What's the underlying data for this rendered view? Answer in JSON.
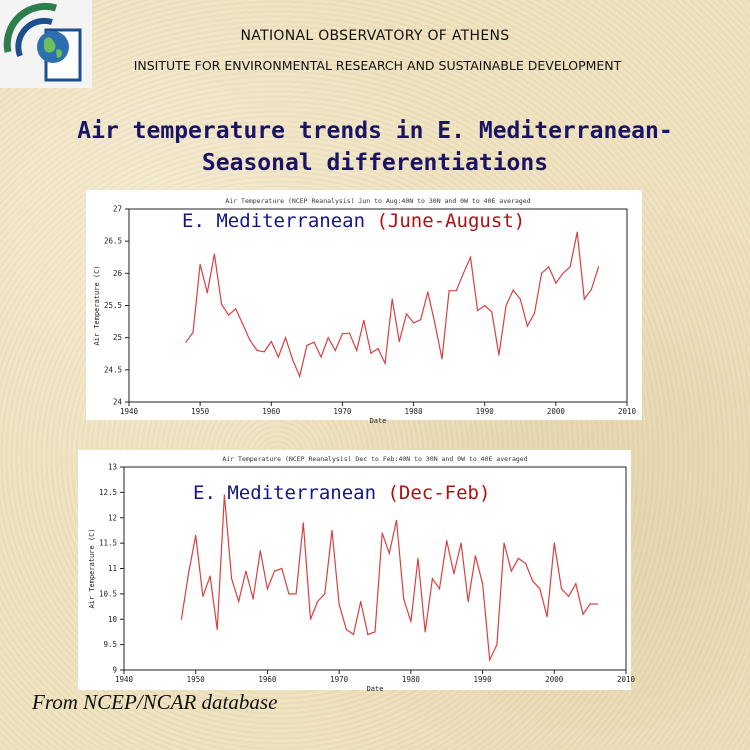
{
  "header": {
    "org": "NATIONAL OBSERVATORY OF ATHENS",
    "institute": "INSITUTE FOR ENVIRONMENTAL RESEARCH AND SUSTAINABLE DEVELOPMENT"
  },
  "title": {
    "line1": "Air temperature trends in E. Mediterranean-",
    "line2": "Seasonal differentiations"
  },
  "footer": {
    "source": "From NCEP/NCAR database"
  },
  "colors": {
    "line": "#d94040",
    "title": "#1a1466",
    "region": "#15158a",
    "season": "#b01010"
  },
  "chart_data": [
    {
      "type": "line",
      "title": "Air Temperature (NCEP Reanalysis) Jun to Aug:40N to 30N and 0W to 40E averaged",
      "overlay_region": "E. Mediterranean",
      "overlay_season": "(June-August)",
      "xlabel": "Date",
      "ylabel": "Air Temperature (C)",
      "xlim": [
        1940,
        2010
      ],
      "ylim": [
        24,
        27
      ],
      "xticks": [
        1940,
        1950,
        1960,
        1970,
        1980,
        1990,
        2000,
        2010
      ],
      "yticks": [
        24,
        24.5,
        25,
        25.5,
        26,
        26.5,
        27
      ],
      "series": [
        {
          "x": [
            1948,
            1949,
            1950,
            1951,
            1952,
            1953,
            1954,
            1955,
            1956,
            1957,
            1958,
            1959,
            1960,
            1961,
            1962,
            1963,
            1964,
            1965,
            1966,
            1967,
            1968,
            1969,
            1970,
            1971,
            1972,
            1973,
            1974,
            1975,
            1976,
            1977,
            1978,
            1979,
            1980,
            1981,
            1982,
            1983,
            1984,
            1985,
            1986,
            1987,
            1988,
            1989,
            1990,
            1991,
            1992,
            1993,
            1994,
            1995,
            1996,
            1997,
            1998,
            1999,
            2000,
            2001,
            2002,
            2003,
            2004,
            2005,
            2006
          ],
          "values": [
            24.93,
            25.08,
            26.14,
            25.7,
            26.3,
            25.52,
            25.35,
            25.45,
            25.21,
            24.96,
            24.8,
            24.78,
            24.94,
            24.7,
            25.0,
            24.66,
            24.4,
            24.88,
            24.93,
            24.7,
            25.0,
            24.8,
            25.06,
            25.07,
            24.8,
            25.27,
            24.76,
            24.83,
            24.6,
            25.6,
            24.94,
            25.37,
            25.23,
            25.28,
            25.71,
            25.22,
            24.67,
            25.73,
            25.73,
            26.0,
            26.25,
            25.42,
            25.5,
            25.4,
            24.73,
            25.5,
            25.74,
            25.6,
            25.18,
            25.38,
            26.0,
            26.1,
            25.85,
            26.0,
            26.1,
            26.64,
            25.6,
            25.75,
            26.1
          ]
        }
      ]
    },
    {
      "type": "line",
      "title": "Air Temperature (NCEP Reanalysis) Dec to Feb:40N to 30N and 0W to 40E averaged",
      "overlay_region": "E. Mediterranean",
      "overlay_season": "(Dec-Feb)",
      "xlabel": "Date",
      "ylabel": "Air Temperature (C)",
      "xlim": [
        1940,
        2010
      ],
      "ylim": [
        9,
        13
      ],
      "xticks": [
        1940,
        1950,
        1960,
        1970,
        1980,
        1990,
        2000,
        2010
      ],
      "yticks": [
        9,
        9.5,
        10,
        10.5,
        11,
        11.5,
        12,
        12.5,
        13
      ],
      "series": [
        {
          "x": [
            1948,
            1949,
            1950,
            1951,
            1952,
            1953,
            1954,
            1955,
            1956,
            1957,
            1958,
            1959,
            1960,
            1961,
            1962,
            1963,
            1964,
            1965,
            1966,
            1967,
            1968,
            1969,
            1970,
            1971,
            1972,
            1973,
            1974,
            1975,
            1976,
            1977,
            1978,
            1979,
            1980,
            1981,
            1982,
            1983,
            1984,
            1985,
            1986,
            1987,
            1988,
            1989,
            1990,
            1991,
            1992,
            1993,
            1994,
            1995,
            1996,
            1997,
            1998,
            1999,
            2000,
            2001,
            2002,
            2003,
            2004,
            2005,
            2006
          ],
          "values": [
            10.0,
            10.9,
            11.65,
            10.45,
            10.85,
            9.8,
            12.45,
            10.8,
            10.35,
            10.95,
            10.4,
            11.35,
            10.6,
            10.95,
            11.0,
            10.5,
            10.5,
            11.9,
            10.0,
            10.35,
            10.5,
            11.75,
            10.3,
            9.8,
            9.7,
            10.35,
            9.7,
            9.75,
            11.7,
            11.3,
            11.95,
            10.4,
            9.95,
            11.2,
            9.75,
            10.8,
            10.6,
            11.55,
            10.9,
            11.5,
            10.35,
            11.25,
            10.7,
            9.2,
            9.5,
            11.5,
            10.95,
            11.2,
            11.1,
            10.75,
            10.6,
            10.05,
            11.5,
            10.6,
            10.45,
            10.7,
            10.1,
            10.3,
            10.3
          ]
        }
      ]
    }
  ]
}
